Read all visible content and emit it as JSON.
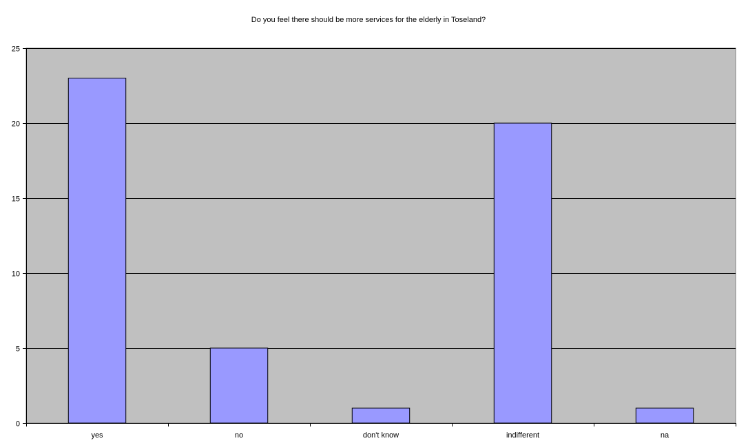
{
  "chart_data": {
    "type": "bar",
    "title": "Do you feel there should be more services for the elderly in Toseland?",
    "xlabel": "",
    "ylabel": "",
    "categories": [
      "yes",
      "no",
      "don't know",
      "indifferent",
      "na"
    ],
    "values": [
      23,
      5,
      1,
      20,
      1
    ],
    "ylim": [
      0,
      25
    ],
    "yticks": [
      0,
      5,
      10,
      15,
      20,
      25
    ],
    "grid": true,
    "legend": "none",
    "colors": {
      "bar_fill": "#9999ff",
      "bar_stroke": "#000000",
      "plot_background": "#c0c0c0",
      "gridline": "#000000"
    }
  }
}
